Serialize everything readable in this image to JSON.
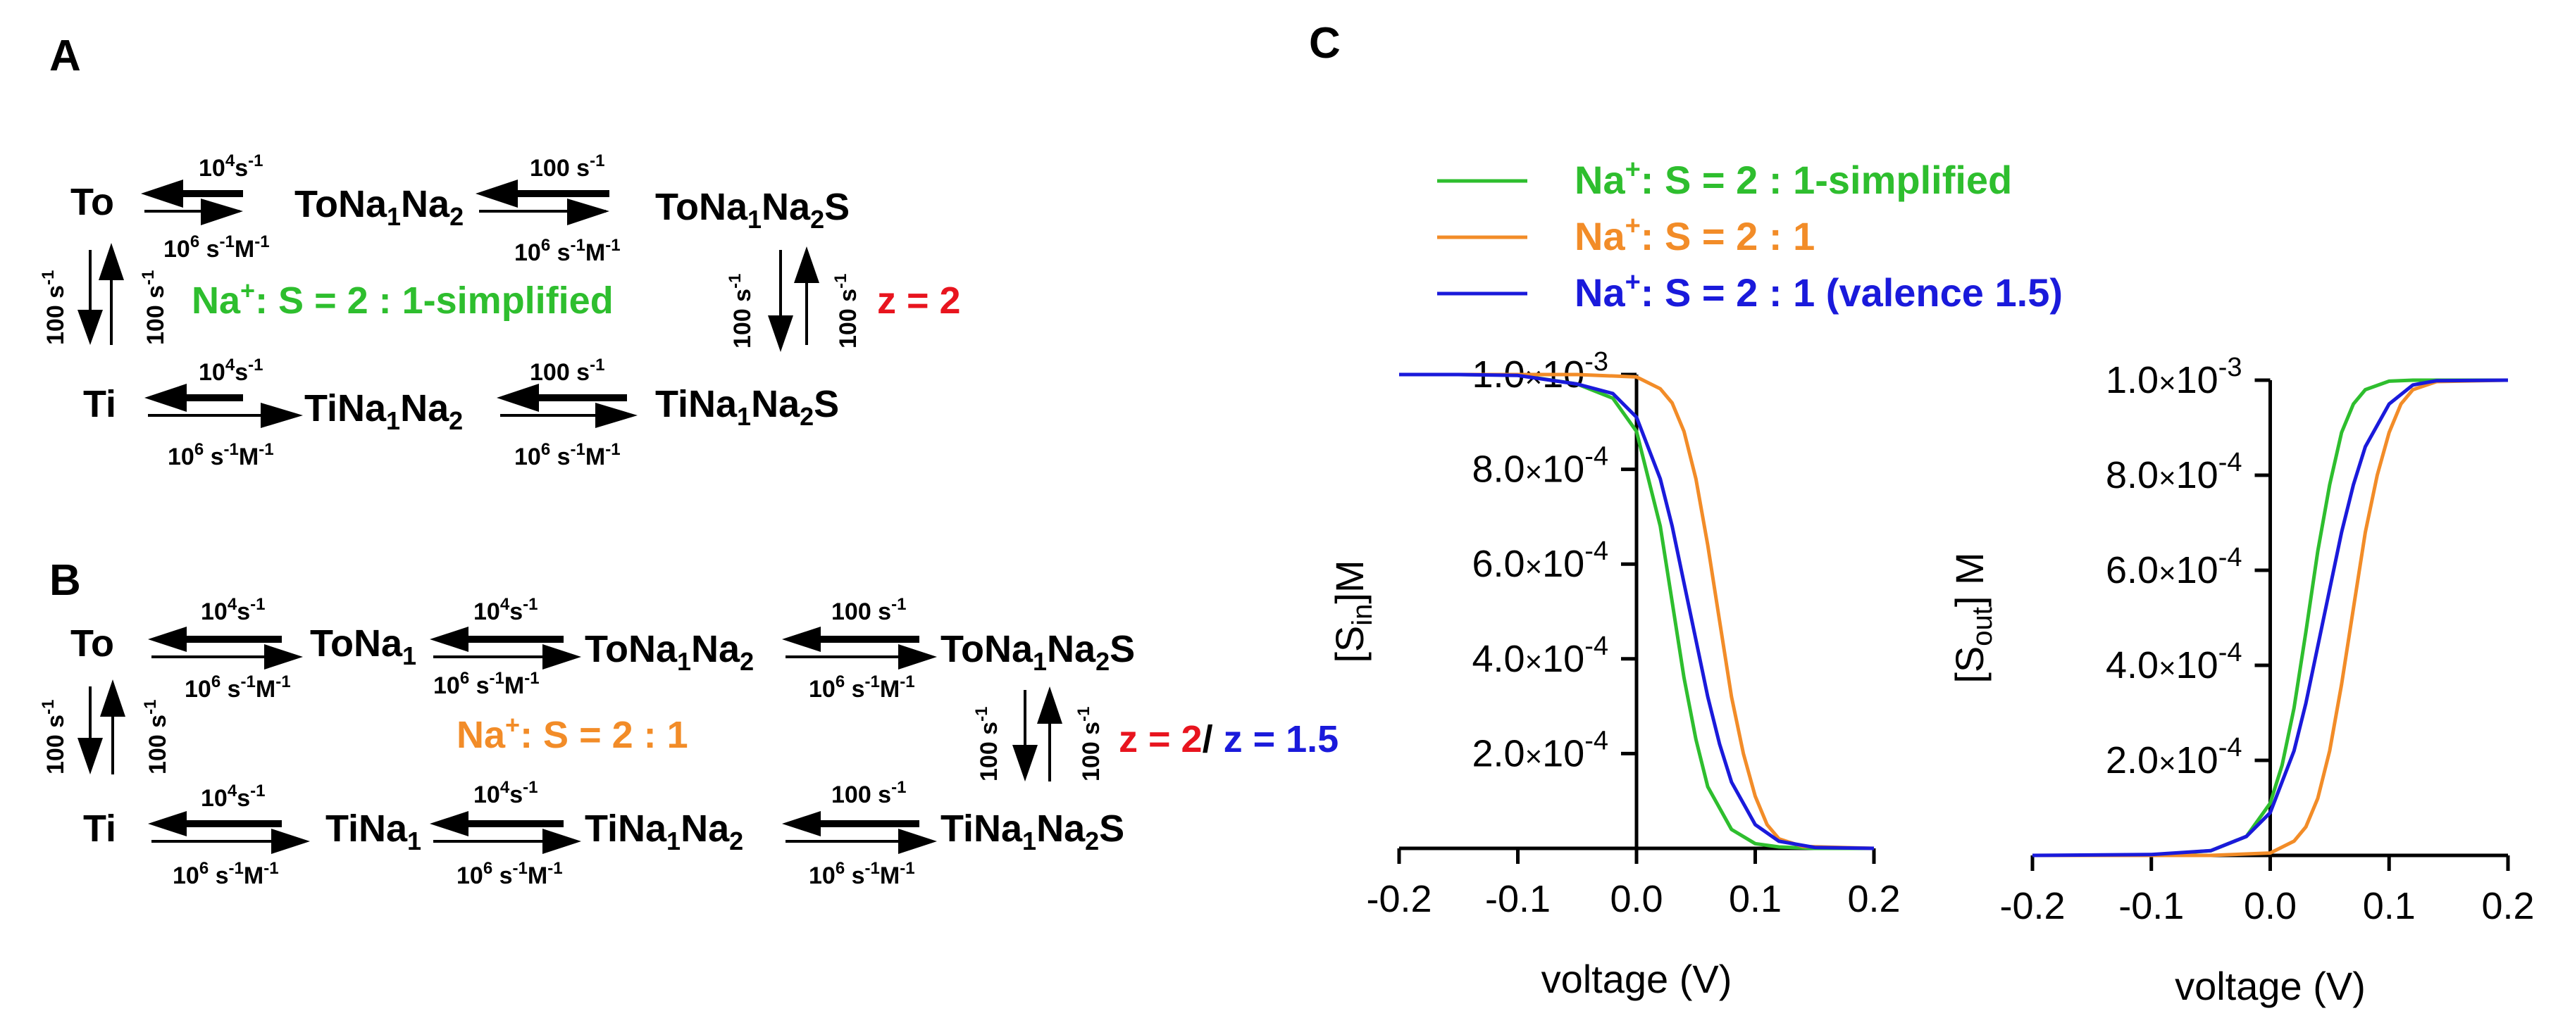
{
  "panel_labels": {
    "a": "A",
    "b": "B",
    "c": "C"
  },
  "colors": {
    "green": "#2EBE2E",
    "orange": "#F28C28",
    "blue": "#1A1ADB",
    "red": "#E8141E",
    "black": "#000000"
  },
  "scheme_a": {
    "states": {
      "to": "To",
      "to_nana": "ToNa",
      "to_nanas": "ToNa",
      "ti": "Ti",
      "ti_nana": "TiNa",
      "ti_nanas": "TiNa"
    },
    "sub1": "1",
    "sub2": "2",
    "na": "Na",
    "s": "S",
    "rate_top": {
      "base": "10",
      "exp": "4",
      "unit": "s",
      "unit_exp": "-1"
    },
    "rate_bottom": {
      "base": "10",
      "exp": "6",
      "unit1": " s",
      "unit1_exp": "-1",
      "unit2": "M",
      "unit2_exp": "-1"
    },
    "rate_100": {
      "text": "100 s",
      "exp": "-1"
    },
    "label": {
      "na": "Na",
      "plus": "+",
      "rest": ": S = 2 : 1-simplified"
    },
    "z": "z = 2"
  },
  "scheme_b": {
    "states": {
      "to": "To",
      "to_na": "ToNa",
      "to_nana": "ToNa",
      "to_nanas": "ToNa",
      "ti": "Ti",
      "ti_na": "TiNa",
      "ti_nana": "TiNa",
      "ti_nanas": "TiNa"
    },
    "label": {
      "na": "Na",
      "plus": "+",
      "rest": ": S = 2 : 1"
    },
    "z_red": "z = 2",
    "z_slash": "/",
    "z_blue": " z = 1.5"
  },
  "legend": [
    {
      "na": "Na",
      "plus": "+",
      "text": ": S = 2 : 1-simplified",
      "color": "#2EBE2E"
    },
    {
      "na": "Na",
      "plus": "+",
      "text": ": S = 2 : 1",
      "color": "#F28C28"
    },
    {
      "na": "Na",
      "plus": "+",
      "text": ": S = 2 : 1 (valence 1.5)",
      "color": "#1A1ADB"
    }
  ],
  "chart_data": [
    {
      "type": "line",
      "title": "",
      "xlabel": "voltage (V)",
      "ylabel": "[S_in] M",
      "ylabel_parts": {
        "open": "[S",
        "sub": "in",
        "close": "]M"
      },
      "xlim": [
        -0.2,
        0.2
      ],
      "ylim": [
        0,
        0.001
      ],
      "x_ticks": [
        "-0.2",
        "-0.1",
        "0.0",
        "0.1",
        "0.2"
      ],
      "y_ticks": [
        {
          "value": 0.0002,
          "mant": "2.0",
          "times": "×",
          "base": "10",
          "exp": "-4"
        },
        {
          "value": 0.0004,
          "mant": "4.0",
          "times": "×",
          "base": "10",
          "exp": "-4"
        },
        {
          "value": 0.0006,
          "mant": "6.0",
          "times": "×",
          "base": "10",
          "exp": "-4"
        },
        {
          "value": 0.0008,
          "mant": "8.0",
          "times": "×",
          "base": "10",
          "exp": "-4"
        },
        {
          "value": 0.001,
          "mant": "1.0",
          "times": "×",
          "base": "10",
          "exp": "-3"
        }
      ],
      "series": [
        {
          "name": "Na+: S = 2 : 1-simplified",
          "color": "#2EBE2E",
          "x": [
            -0.2,
            -0.15,
            -0.1,
            -0.05,
            -0.02,
            0.0,
            0.02,
            0.03,
            0.04,
            0.05,
            0.06,
            0.08,
            0.1,
            0.12,
            0.15,
            0.2
          ],
          "y": [
            0.001,
            0.001,
            0.000999,
            0.00098,
            0.00095,
            0.00088,
            0.00068,
            0.00052,
            0.00036,
            0.00023,
            0.00013,
            4e-05,
            1e-05,
            3e-06,
            0.0,
            0.0
          ]
        },
        {
          "name": "Na+: S = 2 : 1",
          "color": "#F28C28",
          "x": [
            -0.2,
            -0.1,
            -0.05,
            0.0,
            0.02,
            0.03,
            0.04,
            0.05,
            0.06,
            0.07,
            0.08,
            0.09,
            0.1,
            0.11,
            0.12,
            0.14,
            0.2
          ],
          "y": [
            0.001,
            0.001,
            0.001,
            0.000995,
            0.00097,
            0.00094,
            0.00088,
            0.00078,
            0.00064,
            0.00048,
            0.00032,
            0.0002,
            0.00011,
            5e-05,
            2e-05,
            4e-06,
            0.0
          ]
        },
        {
          "name": "Na+: S = 2 : 1 (valence 1.5)",
          "color": "#1A1ADB",
          "x": [
            -0.2,
            -0.15,
            -0.1,
            -0.05,
            -0.02,
            0.0,
            0.02,
            0.03,
            0.04,
            0.05,
            0.06,
            0.07,
            0.08,
            0.1,
            0.12,
            0.15,
            0.2
          ],
          "y": [
            0.001,
            0.001,
            0.000998,
            0.00098,
            0.00096,
            0.00091,
            0.00078,
            0.00068,
            0.00056,
            0.00044,
            0.00032,
            0.00022,
            0.00014,
            5e-05,
            1.5e-05,
            2e-06,
            0.0
          ]
        }
      ]
    },
    {
      "type": "line",
      "title": "",
      "xlabel": "voltage (V)",
      "ylabel": "[S_out] M",
      "ylabel_parts": {
        "open": "[S",
        "sub": "out",
        "close": "] M"
      },
      "xlim": [
        -0.2,
        0.2
      ],
      "ylim": [
        0,
        0.001
      ],
      "x_ticks": [
        "-0.2",
        "-0.1",
        "0.0",
        "0.1",
        "0.2"
      ],
      "y_ticks": [
        {
          "value": 0.0002,
          "mant": "2.0",
          "times": "×",
          "base": "10",
          "exp": "-4"
        },
        {
          "value": 0.0004,
          "mant": "4.0",
          "times": "×",
          "base": "10",
          "exp": "-4"
        },
        {
          "value": 0.0006,
          "mant": "6.0",
          "times": "×",
          "base": "10",
          "exp": "-4"
        },
        {
          "value": 0.0008,
          "mant": "8.0",
          "times": "×",
          "base": "10",
          "exp": "-4"
        },
        {
          "value": 0.001,
          "mant": "1.0",
          "times": "×",
          "base": "10",
          "exp": "-3"
        }
      ],
      "series": [
        {
          "name": "Na+: S = 2 : 1-simplified",
          "color": "#2EBE2E",
          "x": [
            -0.2,
            -0.1,
            -0.05,
            -0.02,
            0.0,
            0.01,
            0.02,
            0.03,
            0.04,
            0.05,
            0.06,
            0.07,
            0.08,
            0.1,
            0.12,
            0.2
          ],
          "y": [
            0.0,
            0.0,
            1e-05,
            4e-05,
            0.00011,
            0.00019,
            0.00031,
            0.00047,
            0.00064,
            0.00078,
            0.00089,
            0.00095,
            0.00098,
            0.000998,
            0.001,
            0.001
          ]
        },
        {
          "name": "Na+: S = 2 : 1",
          "color": "#F28C28",
          "x": [
            -0.2,
            -0.1,
            -0.05,
            0.0,
            0.02,
            0.03,
            0.04,
            0.05,
            0.06,
            0.07,
            0.08,
            0.09,
            0.1,
            0.11,
            0.12,
            0.14,
            0.2
          ],
          "y": [
            0.0,
            0.0,
            0.0,
            5e-06,
            3e-05,
            6e-05,
            0.00012,
            0.00022,
            0.00036,
            0.00052,
            0.00068,
            0.0008,
            0.00089,
            0.00095,
            0.00098,
            0.000997,
            0.001
          ]
        },
        {
          "name": "Na+: S = 2 : 1 (valence 1.5)",
          "color": "#1A1ADB",
          "x": [
            -0.2,
            -0.1,
            -0.05,
            -0.02,
            0.0,
            0.02,
            0.03,
            0.04,
            0.05,
            0.06,
            0.07,
            0.08,
            0.1,
            0.12,
            0.14,
            0.2
          ],
          "y": [
            0.0,
            2e-06,
            1e-05,
            4e-05,
            9e-05,
            0.00022,
            0.00032,
            0.00044,
            0.00056,
            0.00068,
            0.00078,
            0.00086,
            0.00095,
            0.00099,
            0.000999,
            0.001
          ]
        }
      ]
    }
  ]
}
